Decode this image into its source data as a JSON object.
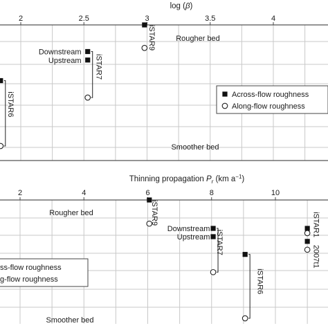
{
  "chart_data": [
    {
      "type": "scatter",
      "xlabel_prefix": "log (",
      "xlabel_symbol": "β",
      "xlabel_suffix": ")",
      "x_ticks": [
        2,
        2.5,
        3,
        3.5,
        4
      ],
      "x_tick_labels": [
        "2",
        "2.5",
        "3",
        "3.5",
        "4"
      ],
      "top_label": "Rougher bed",
      "bottom_label": "Smoother bed",
      "legend": [
        {
          "label": "Across-flow roughness",
          "marker": "filled-square"
        },
        {
          "label": "Along-flow roughness",
          "marker": "open-circle"
        }
      ],
      "points": [
        {
          "x": 2.98,
          "y": 0.0,
          "marker": "filled-square"
        },
        {
          "x": 2.98,
          "y": 0.19,
          "marker": "open-circle"
        },
        {
          "x": 2.53,
          "y": 0.22,
          "marker": "filled-square"
        },
        {
          "x": 2.53,
          "y": 0.29,
          "marker": "filled-square"
        },
        {
          "x": 2.53,
          "y": 0.6,
          "marker": "open-circle"
        },
        {
          "x": 1.84,
          "y": 0.46,
          "marker": "filled-square"
        },
        {
          "x": 1.84,
          "y": 1.0,
          "marker": "open-circle"
        }
      ],
      "annotations": [
        {
          "text": "iSTAR9",
          "x": 3.02,
          "y": 0.0,
          "rotated": true
        },
        {
          "text": "iSTAR7",
          "x": 2.6,
          "y": 0.24,
          "rotated": true
        },
        {
          "text": "iSTAR6",
          "x": 1.9,
          "y": 0.55,
          "rotated": true
        },
        {
          "text": "Downstream",
          "x": 2.48,
          "y": 0.22,
          "align": "end"
        },
        {
          "text": "Upstream",
          "x": 2.48,
          "y": 0.29,
          "align": "end"
        }
      ],
      "xlim": [
        1.85,
        4.5
      ],
      "ylim": [
        0,
        1
      ]
    },
    {
      "type": "scatter",
      "xlabel_prefix": "Thinning propagation ",
      "xlabel_symbol": "P",
      "xlabel_sub": "r",
      "xlabel_suffix": " (km a",
      "xlabel_sup": "−1",
      "xlabel_end": ")",
      "x_ticks": [
        2,
        4,
        6,
        8,
        10
      ],
      "x_tick_labels": [
        "2",
        "4",
        "6",
        "8",
        "10"
      ],
      "top_label": "Rougher bed",
      "bottom_label": "Smoother bed",
      "legend": [
        {
          "label": "ss-flow roughness",
          "marker": "filled-square"
        },
        {
          "label": "g-flow roughness",
          "marker": "open-circle"
        }
      ],
      "points": [
        {
          "x": 6.05,
          "y": 0.0,
          "marker": "filled-square"
        },
        {
          "x": 6.05,
          "y": 0.2,
          "marker": "open-circle"
        },
        {
          "x": 8.05,
          "y": 0.24,
          "marker": "filled-square"
        },
        {
          "x": 8.05,
          "y": 0.31,
          "marker": "filled-square"
        },
        {
          "x": 8.05,
          "y": 0.61,
          "marker": "open-circle"
        },
        {
          "x": 9.05,
          "y": 0.46,
          "marker": "filled-square"
        },
        {
          "x": 9.05,
          "y": 1.0,
          "marker": "open-circle"
        },
        {
          "x": 11.0,
          "y": 0.24,
          "marker": "filled-square"
        },
        {
          "x": 11.0,
          "y": 0.28,
          "marker": "open-circle"
        },
        {
          "x": 11.0,
          "y": 0.35,
          "marker": "filled-square"
        },
        {
          "x": 11.0,
          "y": 0.42,
          "marker": "open-circle"
        }
      ],
      "annotations": [
        {
          "text": "iSTAR9",
          "x": 6.14,
          "y": 0.0,
          "rotated": true
        },
        {
          "text": "iSTAR7",
          "x": 8.18,
          "y": 0.25,
          "rotated": true
        },
        {
          "text": "iSTAR6",
          "x": 9.45,
          "y": 0.58,
          "rotated": true
        },
        {
          "text": "iSTAR1",
          "x": 11.2,
          "y": 0.1,
          "rotated": true
        },
        {
          "text": "2007t1",
          "x": 11.2,
          "y": 0.38,
          "rotated": true
        },
        {
          "text": "Downstream",
          "x": 7.95,
          "y": 0.24,
          "align": "end"
        },
        {
          "text": "Upstream",
          "x": 7.95,
          "y": 0.31,
          "align": "end"
        }
      ],
      "xlim": [
        0.5,
        11.5
      ],
      "ylim": [
        0,
        1
      ]
    }
  ]
}
